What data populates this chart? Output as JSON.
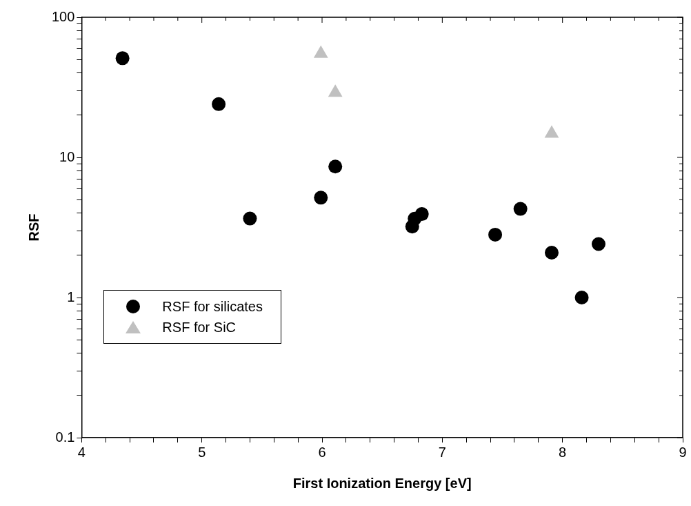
{
  "chart_data": {
    "type": "scatter",
    "xlabel": "First Ionization Energy [eV]",
    "ylabel": "RSF",
    "log": "y",
    "grid": false,
    "legend": "bottom left",
    "xlim": [
      4,
      9
    ],
    "xticks": [
      4,
      {
        "value": 4.2,
        "label": null
      },
      {
        "value": 4.4,
        "label": null
      },
      {
        "value": 4.6,
        "label": null
      },
      {
        "value": 4.8,
        "label": null
      },
      5,
      {
        "value": 5.2,
        "label": null
      },
      {
        "value": 5.4,
        "label": null
      },
      {
        "value": 5.6,
        "label": null
      },
      {
        "value": 5.8,
        "label": null
      },
      6,
      {
        "value": 6.2,
        "label": null
      },
      {
        "value": 6.4,
        "label": null
      },
      {
        "value": 6.6,
        "label": null
      },
      {
        "value": 6.8,
        "label": null
      },
      7,
      {
        "value": 7.2,
        "label": null
      },
      {
        "value": 7.4,
        "label": null
      },
      {
        "value": 7.6,
        "label": null
      },
      {
        "value": 7.8,
        "label": null
      },
      8,
      {
        "value": 8.2,
        "label": null
      },
      {
        "value": 8.4,
        "label": null
      },
      {
        "value": 8.6,
        "label": null
      },
      {
        "value": 8.8,
        "label": null
      },
      9
    ],
    "ylim": [
      0.1,
      100
    ],
    "yticks": [
      0.1,
      {
        "value": 0.2,
        "label": null
      },
      {
        "value": 0.3,
        "label": null
      },
      {
        "value": 0.4,
        "label": null
      },
      {
        "value": 0.5,
        "label": null
      },
      {
        "value": 0.6,
        "label": null
      },
      {
        "value": 0.7,
        "label": null
      },
      {
        "value": 0.8,
        "label": null
      },
      {
        "value": 0.9,
        "label": null
      },
      1,
      {
        "value": 2,
        "label": null
      },
      {
        "value": 3,
        "label": null
      },
      {
        "value": 4,
        "label": null
      },
      {
        "value": 5,
        "label": null
      },
      {
        "value": 6,
        "label": null
      },
      {
        "value": 7,
        "label": null
      },
      {
        "value": 8,
        "label": null
      },
      {
        "value": 9,
        "label": null
      },
      10,
      {
        "value": 20,
        "label": null
      },
      {
        "value": 30,
        "label": null
      },
      {
        "value": 40,
        "label": null
      },
      {
        "value": 50,
        "label": null
      },
      {
        "value": 60,
        "label": null
      },
      {
        "value": 70,
        "label": null
      },
      {
        "value": 80,
        "label": null
      },
      {
        "value": 90,
        "label": null
      },
      100
    ],
    "series": [
      {
        "name": "RSF for silicates",
        "color": "#000000",
        "marker": "circle",
        "x": [
          4.34,
          5.14,
          5.4,
          5.99,
          6.11,
          6.75,
          6.77,
          6.83,
          7.44,
          7.65,
          7.91,
          8.16,
          8.3
        ],
        "values": [
          51,
          24,
          3.66,
          5.16,
          8.6,
          3.21,
          3.65,
          3.94,
          2.81,
          4.29,
          2.09,
          1.0,
          2.41
        ]
      },
      {
        "name": "RSF for SiC",
        "color": "#c0c0c0",
        "marker": "triangle",
        "x": [
          5.99,
          6.11,
          7.91
        ],
        "values": [
          55,
          29,
          14.8
        ]
      }
    ]
  }
}
